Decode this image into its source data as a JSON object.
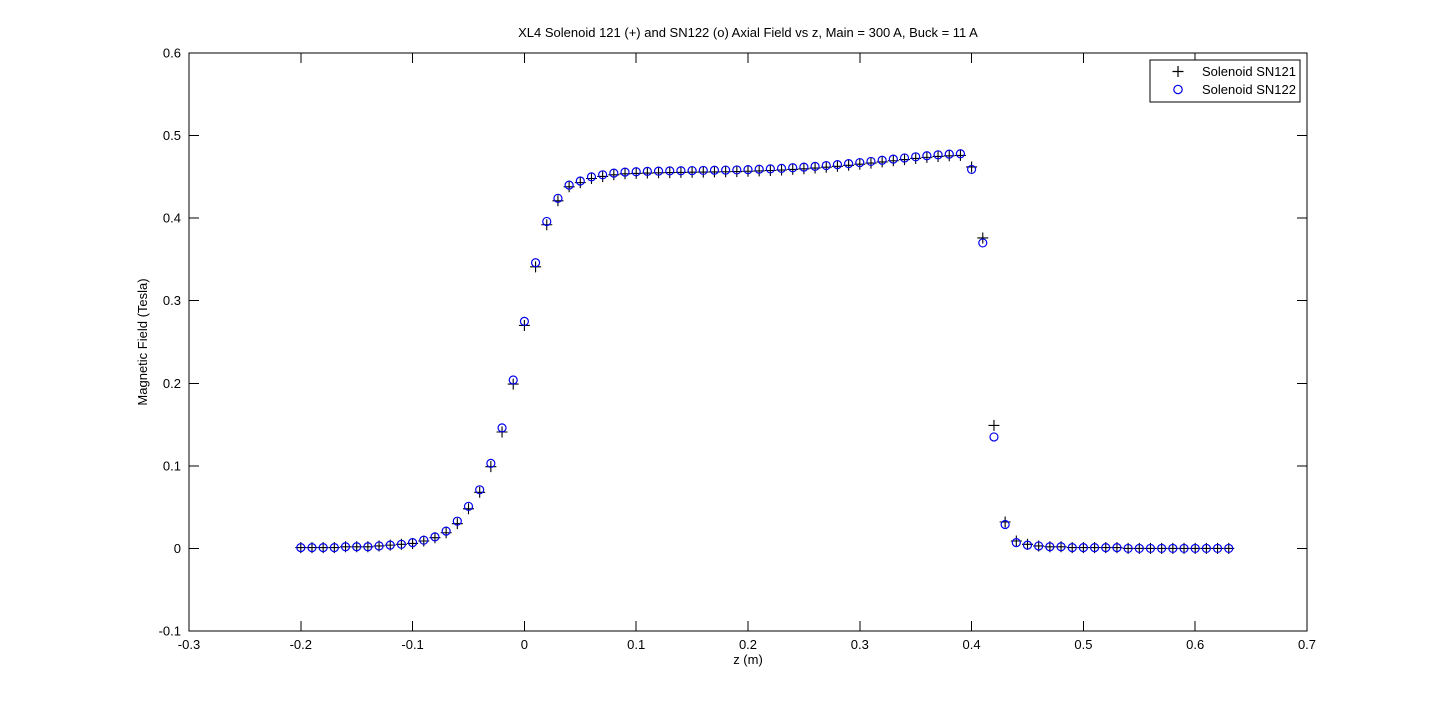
{
  "window": {
    "background": "#ffffff"
  },
  "chart_data": {
    "type": "scatter",
    "title": "XL4 Solenoid 121 (+) and SN122 (o) Axial Field vs z, Main = 300 A, Buck = 11 A",
    "xlabel": "z (m)",
    "ylabel": "Magnetic Field (Tesla)",
    "xlim": [
      -0.3,
      0.7
    ],
    "ylim": [
      -0.1,
      0.6
    ],
    "grid": false,
    "x_ticks": [
      -0.3,
      -0.2,
      -0.1,
      0,
      0.1,
      0.2,
      0.3,
      0.4,
      0.5,
      0.6,
      0.7
    ],
    "x_tick_labels": [
      "-0.3",
      "-0.2",
      "-0.1",
      "0",
      "0.1",
      "0.2",
      "0.3",
      "0.4",
      "0.5",
      "0.6",
      "0.7"
    ],
    "y_ticks": [
      -0.1,
      0,
      0.1,
      0.2,
      0.3,
      0.4,
      0.5,
      0.6
    ],
    "y_tick_labels": [
      "-0.1",
      "0",
      "0.1",
      "0.2",
      "0.3",
      "0.4",
      "0.5",
      "0.6"
    ],
    "legend": {
      "position": "top-right",
      "entries": [
        {
          "label": "Solenoid SN121",
          "marker": "plus",
          "color": "#000000"
        },
        {
          "label": "Solenoid SN122",
          "marker": "circle",
          "color": "#0000EE"
        }
      ]
    },
    "x": [
      -0.2,
      -0.19,
      -0.18,
      -0.17,
      -0.16,
      -0.15,
      -0.14,
      -0.13,
      -0.12,
      -0.11,
      -0.1,
      -0.09,
      -0.08,
      -0.07,
      -0.06,
      -0.05,
      -0.04,
      -0.03,
      -0.02,
      -0.01,
      0.0,
      0.01,
      0.02,
      0.03,
      0.04,
      0.05,
      0.06,
      0.07,
      0.08,
      0.09,
      0.1,
      0.11,
      0.12,
      0.13,
      0.14,
      0.15,
      0.16,
      0.17,
      0.18,
      0.19,
      0.2,
      0.21,
      0.22,
      0.23,
      0.24,
      0.25,
      0.26,
      0.27,
      0.28,
      0.29,
      0.3,
      0.31,
      0.32,
      0.33,
      0.34,
      0.35,
      0.36,
      0.37,
      0.38,
      0.39,
      0.4,
      0.41,
      0.42,
      0.43,
      0.44,
      0.45,
      0.46,
      0.47,
      0.48,
      0.49,
      0.5,
      0.51,
      0.52,
      0.53,
      0.54,
      0.55,
      0.56,
      0.57,
      0.58,
      0.59,
      0.6,
      0.61,
      0.62,
      0.63
    ],
    "series": [
      {
        "name": "Solenoid SN121",
        "marker": "plus",
        "color": "#000000",
        "values": [
          0.001,
          0.001,
          0.001,
          0.001,
          0.002,
          0.002,
          0.002,
          0.003,
          0.004,
          0.005,
          0.006,
          0.009,
          0.013,
          0.019,
          0.03,
          0.048,
          0.068,
          0.099,
          0.141,
          0.199,
          0.27,
          0.341,
          0.392,
          0.421,
          0.438,
          0.443,
          0.448,
          0.4505,
          0.4525,
          0.4537,
          0.4542,
          0.4546,
          0.4549,
          0.4552,
          0.4554,
          0.4556,
          0.4558,
          0.456,
          0.4562,
          0.4564,
          0.4568,
          0.4572,
          0.4577,
          0.4583,
          0.459,
          0.4598,
          0.4607,
          0.4617,
          0.4628,
          0.464,
          0.4653,
          0.4667,
          0.4681,
          0.4695,
          0.4709,
          0.4723,
          0.4736,
          0.4747,
          0.4755,
          0.476,
          0.462,
          0.376,
          0.149,
          0.032,
          0.009,
          0.005,
          0.003,
          0.002,
          0.002,
          0.001,
          0.001,
          0.001,
          0.001,
          0.001,
          0.0,
          0.0,
          0.0,
          0.0,
          0.0,
          0.0,
          0.0,
          0.0,
          0.0,
          0.0
        ]
      },
      {
        "name": "Solenoid SN122",
        "marker": "circle",
        "color": "#0000EE",
        "values": [
          0.001,
          0.001,
          0.001,
          0.001,
          0.002,
          0.002,
          0.002,
          0.003,
          0.004,
          0.005,
          0.007,
          0.01,
          0.014,
          0.021,
          0.033,
          0.051,
          0.071,
          0.103,
          0.146,
          0.204,
          0.275,
          0.346,
          0.396,
          0.424,
          0.44,
          0.445,
          0.45,
          0.4525,
          0.4545,
          0.4557,
          0.4562,
          0.4566,
          0.4569,
          0.4572,
          0.4574,
          0.4576,
          0.4578,
          0.458,
          0.4582,
          0.4584,
          0.4588,
          0.4592,
          0.4597,
          0.4603,
          0.461,
          0.4618,
          0.4627,
          0.4637,
          0.4648,
          0.466,
          0.4673,
          0.4687,
          0.4701,
          0.4715,
          0.4729,
          0.4743,
          0.4756,
          0.4767,
          0.4775,
          0.478,
          0.459,
          0.37,
          0.135,
          0.029,
          0.007,
          0.004,
          0.003,
          0.002,
          0.002,
          0.001,
          0.001,
          0.001,
          0.001,
          0.001,
          0.0,
          0.0,
          0.0,
          0.0,
          0.0,
          0.0,
          0.0,
          0.0,
          0.0,
          0.0
        ]
      }
    ]
  }
}
